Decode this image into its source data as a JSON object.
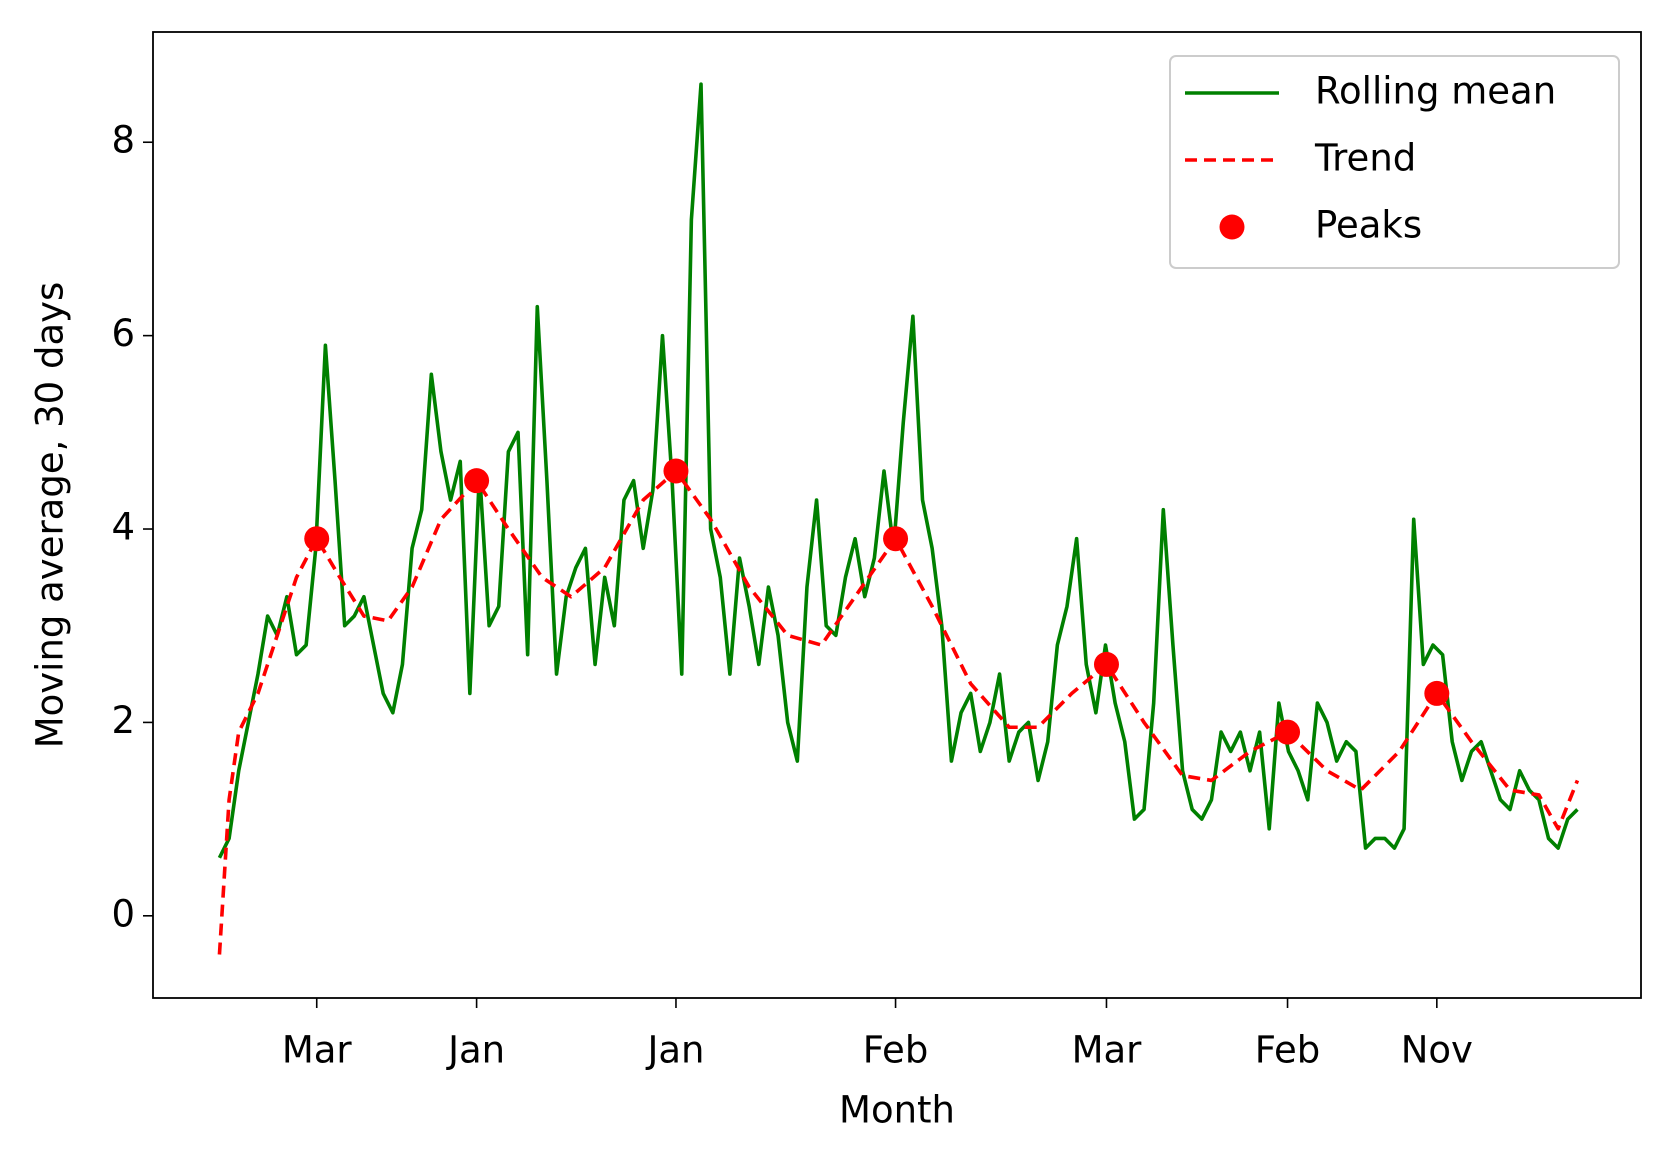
{
  "chart_data": {
    "type": "line",
    "xlabel": "Month",
    "ylabel": "Moving average, 30 days",
    "xlim": [
      -69,
      1476
    ],
    "ylim": [
      -0.85,
      9.14
    ],
    "xticks": [
      {
        "value": 101,
        "label": "Mar"
      },
      {
        "value": 267,
        "label": "Jan"
      },
      {
        "value": 474,
        "label": "Jan"
      },
      {
        "value": 702,
        "label": "Feb"
      },
      {
        "value": 921,
        "label": "Mar"
      },
      {
        "value": 1109,
        "label": "Feb"
      },
      {
        "value": 1264,
        "label": "Nov"
      }
    ],
    "yticks": [
      0,
      2,
      4,
      6,
      8
    ],
    "legend": "upper right",
    "series": [
      {
        "name": "Rolling mean",
        "color": "#008000",
        "style": "solid",
        "x": [
          0,
          10,
          20,
          30,
          40,
          50,
          60,
          70,
          80,
          90,
          100,
          110,
          120,
          130,
          140,
          150,
          160,
          170,
          180,
          190,
          200,
          210,
          220,
          230,
          240,
          250,
          260,
          270,
          280,
          290,
          300,
          310,
          320,
          330,
          340,
          350,
          360,
          370,
          380,
          390,
          400,
          410,
          420,
          430,
          440,
          450,
          460,
          470,
          480,
          490,
          500,
          510,
          520,
          530,
          540,
          550,
          560,
          570,
          580,
          590,
          600,
          610,
          620,
          630,
          640,
          650,
          660,
          670,
          680,
          690,
          700,
          710,
          720,
          730,
          740,
          750,
          760,
          770,
          780,
          790,
          800,
          810,
          820,
          830,
          840,
          850,
          860,
          870,
          880,
          890,
          900,
          910,
          920,
          930,
          940,
          950,
          960,
          970,
          980,
          990,
          1000,
          1010,
          1020,
          1030,
          1040,
          1050,
          1060,
          1070,
          1080,
          1090,
          1100,
          1110,
          1120,
          1130,
          1140,
          1150,
          1160,
          1170,
          1180,
          1190,
          1200,
          1210,
          1220,
          1230,
          1240,
          1250,
          1260,
          1270,
          1280,
          1290,
          1300,
          1310,
          1320,
          1330,
          1340,
          1350,
          1360,
          1370,
          1380,
          1390,
          1400,
          1410
        ],
        "values": [
          0.6,
          0.8,
          1.5,
          2.0,
          2.5,
          3.1,
          2.9,
          3.3,
          2.7,
          2.8,
          3.8,
          5.9,
          4.5,
          3.0,
          3.1,
          3.3,
          2.8,
          2.3,
          2.1,
          2.6,
          3.8,
          4.2,
          5.6,
          4.8,
          4.3,
          4.7,
          2.3,
          4.6,
          3.0,
          3.2,
          4.8,
          5.0,
          2.7,
          6.3,
          4.5,
          2.5,
          3.3,
          3.6,
          3.8,
          2.6,
          3.5,
          3.0,
          4.3,
          4.5,
          3.8,
          4.4,
          6.0,
          4.5,
          2.5,
          7.2,
          8.6,
          4.0,
          3.5,
          2.5,
          3.7,
          3.2,
          2.6,
          3.4,
          2.9,
          2.0,
          1.6,
          3.4,
          4.3,
          3.0,
          2.9,
          3.5,
          3.9,
          3.3,
          3.7,
          4.6,
          3.8,
          5.1,
          6.2,
          4.3,
          3.8,
          3.0,
          1.6,
          2.1,
          2.3,
          1.7,
          2.0,
          2.5,
          1.6,
          1.9,
          2.0,
          1.4,
          1.8,
          2.8,
          3.2,
          3.9,
          2.6,
          2.1,
          2.8,
          2.2,
          1.8,
          1.0,
          1.1,
          2.2,
          4.2,
          2.8,
          1.5,
          1.1,
          1.0,
          1.2,
          1.9,
          1.7,
          1.9,
          1.5,
          1.9,
          0.9,
          2.2,
          1.7,
          1.5,
          1.2,
          2.2,
          2.0,
          1.6,
          1.8,
          1.7,
          0.7,
          0.8,
          0.8,
          0.7,
          0.9,
          4.1,
          2.6,
          2.8,
          2.7,
          1.8,
          1.4,
          1.7,
          1.8,
          1.5,
          1.2,
          1.1,
          1.5,
          1.3,
          1.2,
          0.8,
          0.7,
          1.0,
          1.1
        ]
      },
      {
        "name": "Trend",
        "color": "#ff0000",
        "style": "dashed",
        "x": [
          0,
          10,
          20,
          40,
          60,
          80,
          101,
          125,
          150,
          175,
          200,
          230,
          267,
          300,
          335,
          365,
          400,
          440,
          474,
          510,
          550,
          590,
          625,
          660,
          702,
          740,
          780,
          820,
          850,
          885,
          921,
          960,
          1000,
          1030,
          1070,
          1109,
          1150,
          1185,
          1225,
          1264,
          1300,
          1340,
          1370,
          1390,
          1410
        ],
        "values": [
          -0.4,
          1.2,
          1.9,
          2.3,
          2.9,
          3.5,
          3.9,
          3.5,
          3.1,
          3.05,
          3.4,
          4.1,
          4.5,
          4.0,
          3.5,
          3.3,
          3.6,
          4.3,
          4.6,
          4.1,
          3.4,
          2.9,
          2.8,
          3.3,
          3.9,
          3.2,
          2.4,
          1.95,
          1.95,
          2.3,
          2.6,
          2.0,
          1.45,
          1.4,
          1.7,
          1.9,
          1.5,
          1.3,
          1.7,
          2.3,
          1.8,
          1.3,
          1.25,
          0.9,
          1.4
        ]
      },
      {
        "name": "Peaks",
        "color": "#ff0000",
        "style": "markers",
        "x": [
          101,
          267,
          474,
          702,
          921,
          1109,
          1264
        ],
        "values": [
          3.9,
          4.5,
          4.6,
          3.9,
          2.6,
          1.9,
          2.3
        ]
      }
    ]
  }
}
